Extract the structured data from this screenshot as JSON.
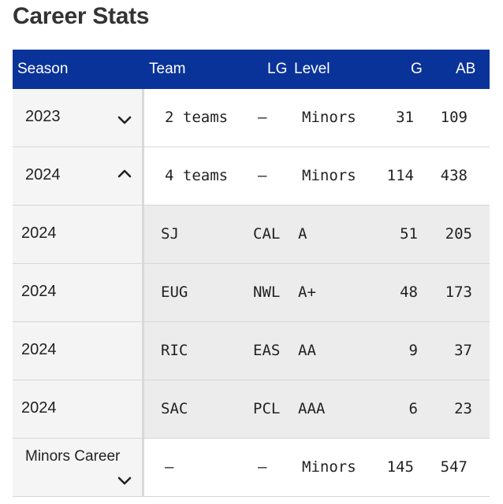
{
  "page": {
    "title": "Career Stats"
  },
  "table": {
    "headers": {
      "season": "Season",
      "team": "Team",
      "lg": "LG",
      "level": "Level",
      "g": "G",
      "ab": "AB"
    },
    "rows": [
      {
        "season": "2023",
        "team": "2 teams",
        "lg": "–",
        "level": "Minors",
        "g": "31",
        "ab": "109",
        "icon": "chevron-down-icon"
      },
      {
        "season": "2024",
        "team": "4 teams",
        "lg": "–",
        "level": "Minors",
        "g": "114",
        "ab": "438",
        "icon": "chevron-up-icon"
      },
      {
        "season": "2024",
        "team": "SJ",
        "lg": "CAL",
        "level": "A",
        "g": "51",
        "ab": "205"
      },
      {
        "season": "2024",
        "team": "EUG",
        "lg": "NWL",
        "level": "A+",
        "g": "48",
        "ab": "173"
      },
      {
        "season": "2024",
        "team": "RIC",
        "lg": "EAS",
        "level": "AA",
        "g": "9",
        "ab": "37"
      },
      {
        "season": "2024",
        "team": "SAC",
        "lg": "PCL",
        "level": "AAA",
        "g": "6",
        "ab": "23"
      },
      {
        "season": "Minors Career",
        "team": "–",
        "lg": "–",
        "level": "Minors",
        "g": "145",
        "ab": "547",
        "icon": "chevron-down-icon"
      }
    ]
  },
  "colors": {
    "header_bg": "#0a3399",
    "header_text": "#ffffff"
  }
}
